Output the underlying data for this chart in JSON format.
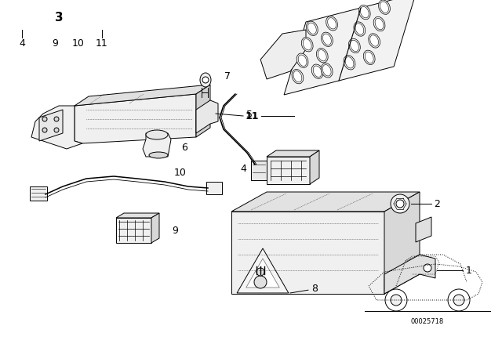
{
  "bg_color": "#ffffff",
  "fig_width": 6.4,
  "fig_height": 4.48,
  "dpi": 100,
  "diagram_code": "00025718",
  "line_color": "#000000",
  "lw": 0.7
}
